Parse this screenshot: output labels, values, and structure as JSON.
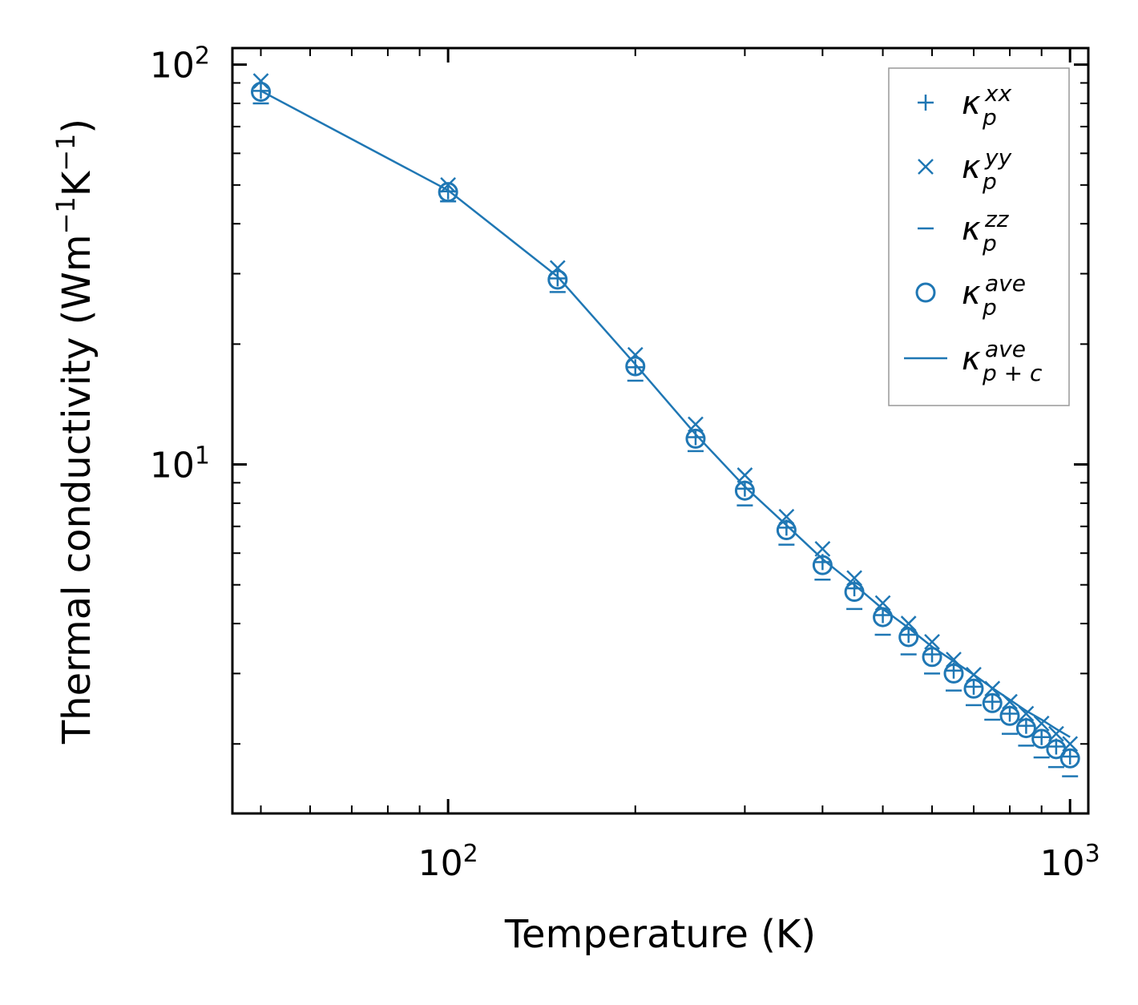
{
  "chart_data": {
    "type": "line",
    "title": "",
    "xlabel": "Temperature (K)",
    "ylabel": {
      "main": "Thermal conductivity (Wm",
      "exp1": "−1",
      "mid": "K",
      "exp2": "−1",
      "end": ")"
    },
    "xscale": "log",
    "yscale": "log",
    "xlim": [
      45,
      1070
    ],
    "ylim": [
      1.34,
      110
    ],
    "x_ticks": [
      {
        "base": "10",
        "exp": "2",
        "value": 100
      },
      {
        "base": "10",
        "exp": "3",
        "value": 1000
      }
    ],
    "y_ticks": [
      {
        "base": "10",
        "exp": "1",
        "value": 10
      },
      {
        "base": "10",
        "exp": "2",
        "value": 100
      }
    ],
    "grid": false,
    "legend_position": "top-right",
    "color": "#1f77b4",
    "x": [
      50,
      100,
      150,
      200,
      250,
      300,
      350,
      400,
      450,
      500,
      550,
      600,
      650,
      700,
      750,
      800,
      850,
      900,
      950,
      1000
    ],
    "series": [
      {
        "name": "xx",
        "label_base": "κ",
        "label_sub": "p",
        "label_sup": "xx",
        "marker": "plus",
        "values": [
          86.0,
          48.2,
          29.2,
          17.5,
          11.7,
          8.7,
          6.95,
          5.7,
          4.9,
          4.2,
          3.75,
          3.35,
          3.05,
          2.78,
          2.55,
          2.38,
          2.22,
          2.08,
          1.97,
          1.86
        ]
      },
      {
        "name": "yy",
        "label_base": "κ",
        "label_sub": "p",
        "label_sup": "yy",
        "marker": "x",
        "values": [
          91.0,
          50.0,
          31.0,
          18.8,
          12.6,
          9.4,
          7.4,
          6.15,
          5.2,
          4.5,
          4.0,
          3.6,
          3.25,
          2.98,
          2.75,
          2.55,
          2.38,
          2.25,
          2.12,
          2.0
        ]
      },
      {
        "name": "zz",
        "label_base": "κ",
        "label_sub": "p",
        "label_sup": "zz",
        "marker": "hline",
        "values": [
          80.0,
          45.5,
          27.0,
          16.2,
          10.8,
          7.9,
          6.3,
          5.15,
          4.35,
          3.75,
          3.35,
          3.0,
          2.72,
          2.5,
          2.3,
          2.12,
          1.98,
          1.85,
          1.75,
          1.66
        ]
      },
      {
        "name": "ave",
        "label_base": "κ",
        "label_sub": "p",
        "label_sup": "ave",
        "marker": "circle",
        "values": [
          85.5,
          48.0,
          29.0,
          17.6,
          11.6,
          8.6,
          6.85,
          5.6,
          4.8,
          4.15,
          3.7,
          3.3,
          3.0,
          2.75,
          2.53,
          2.35,
          2.19,
          2.06,
          1.94,
          1.84
        ]
      },
      {
        "name": "ave_pc",
        "label_base": "κ",
        "label_sub": "p + c",
        "label_sup": "ave",
        "marker": "line",
        "values": [
          86.0,
          48.5,
          29.5,
          17.8,
          11.9,
          8.8,
          7.05,
          5.8,
          5.0,
          4.35,
          3.9,
          3.5,
          3.22,
          2.98,
          2.76,
          2.58,
          2.42,
          2.3,
          2.18,
          2.08
        ]
      }
    ]
  }
}
